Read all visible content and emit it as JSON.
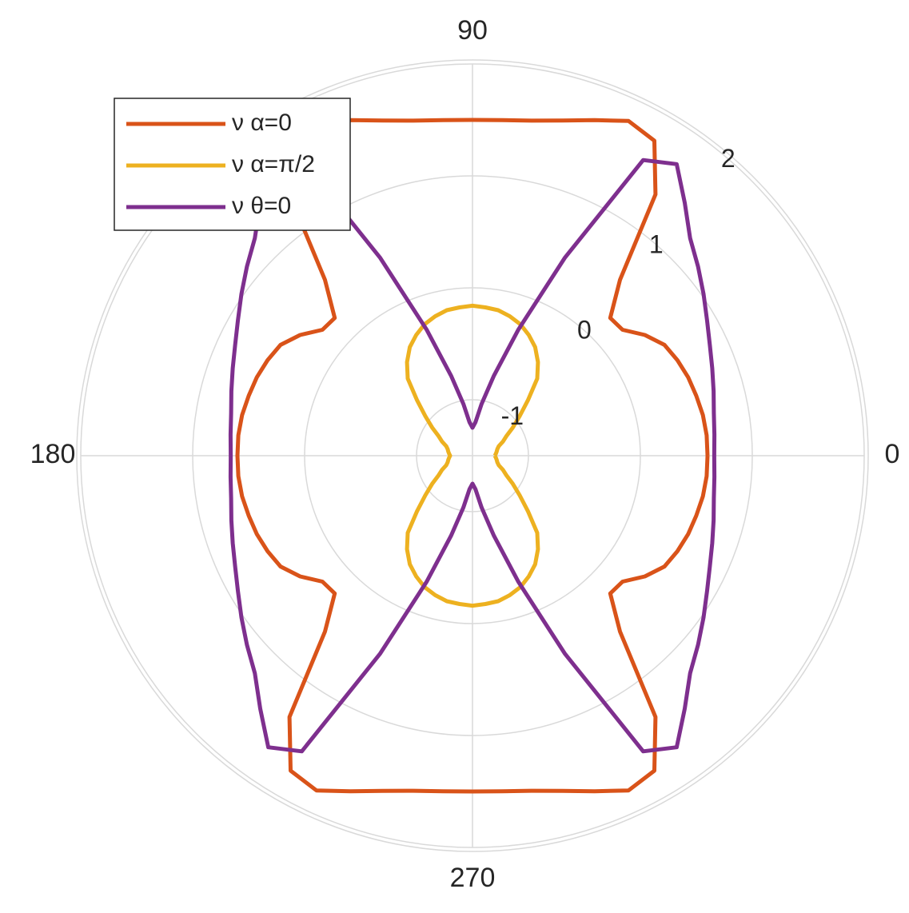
{
  "chart_data": {
    "type": "polar",
    "theta": [
      0,
      5,
      10,
      15,
      20,
      25,
      30,
      35,
      40,
      45,
      50,
      55,
      60,
      65,
      70,
      75,
      80,
      85,
      90,
      95,
      100,
      105,
      110,
      115,
      120,
      125,
      130,
      135,
      140,
      145,
      150,
      155,
      160,
      165,
      170,
      175,
      180,
      185,
      190,
      195,
      200,
      205,
      210,
      215,
      220,
      225,
      230,
      235,
      240,
      245,
      250,
      255,
      260,
      265,
      270,
      275,
      280,
      285,
      290,
      295,
      300,
      305,
      310,
      315,
      320,
      325,
      330,
      335,
      340,
      345,
      350,
      355,
      360
    ],
    "rlim": [
      -1.5,
      2
    ],
    "rticks": [
      -1,
      0,
      1,
      2
    ],
    "thetaticks": [
      0,
      90,
      180,
      270
    ],
    "grid": true,
    "legend": "upper left",
    "series": [
      {
        "name": "ν α=0",
        "color": "#d95319",
        "values": [
          0.6,
          0.6,
          0.59,
          0.57,
          0.55,
          0.52,
          0.48,
          0.38,
          0.25,
          0.24,
          0.55,
          1.35,
          1.75,
          1.8,
          1.69,
          1.6,
          1.54,
          1.51,
          1.5,
          1.51,
          1.54,
          1.6,
          1.69,
          1.8,
          1.75,
          1.35,
          0.55,
          0.24,
          0.25,
          0.38,
          0.48,
          0.52,
          0.55,
          0.57,
          0.59,
          0.6,
          0.6,
          0.6,
          0.59,
          0.57,
          0.55,
          0.52,
          0.48,
          0.38,
          0.25,
          0.24,
          0.55,
          1.35,
          1.75,
          1.8,
          1.69,
          1.6,
          1.54,
          1.51,
          1.5,
          1.51,
          1.54,
          1.6,
          1.69,
          1.8,
          1.75,
          1.35,
          0.55,
          0.24,
          0.25,
          0.38,
          0.48,
          0.52,
          0.55,
          0.57,
          0.59,
          0.6,
          0.6
        ]
      },
      {
        "name": "ν α=π/2",
        "color": "#edb120",
        "values": [
          -1.3,
          -1.29,
          -1.28,
          -1.27,
          -1.25,
          -1.2,
          -1.15,
          -1.06,
          -0.95,
          -0.8,
          -0.6,
          -0.48,
          -0.38,
          -0.31,
          -0.25,
          -0.21,
          -0.18,
          -0.17,
          -0.16,
          -0.17,
          -0.18,
          -0.21,
          -0.25,
          -0.31,
          -0.38,
          -0.48,
          -0.6,
          -0.8,
          -0.95,
          -1.06,
          -1.15,
          -1.2,
          -1.25,
          -1.27,
          -1.28,
          -1.29,
          -1.3,
          -1.29,
          -1.28,
          -1.27,
          -1.25,
          -1.2,
          -1.15,
          -1.06,
          -0.95,
          -0.8,
          -0.6,
          -0.48,
          -0.38,
          -0.31,
          -0.25,
          -0.21,
          -0.18,
          -0.17,
          -0.16,
          -0.17,
          -0.18,
          -0.21,
          -0.25,
          -0.31,
          -0.38,
          -0.48,
          -0.6,
          -0.8,
          -0.95,
          -1.06,
          -1.15,
          -1.2,
          -1.25,
          -1.27,
          -1.28,
          -1.29,
          -1.3
        ]
      },
      {
        "name": "ν θ=0",
        "color": "#7e2f8e",
        "values": [
          0.66,
          0.67,
          0.69,
          0.73,
          0.78,
          0.84,
          0.92,
          1.02,
          1.13,
          1.25,
          1.45,
          1.68,
          1.55,
          0.45,
          -0.3,
          -0.76,
          -1.03,
          -1.2,
          -1.25,
          -1.2,
          -1.03,
          -0.76,
          -0.3,
          0.45,
          1.55,
          1.68,
          1.45,
          1.25,
          1.13,
          1.02,
          0.92,
          0.84,
          0.78,
          0.73,
          0.69,
          0.67,
          0.66,
          0.67,
          0.69,
          0.73,
          0.78,
          0.84,
          0.92,
          1.02,
          1.13,
          1.25,
          1.45,
          1.68,
          1.55,
          0.45,
          -0.3,
          -0.76,
          -1.03,
          -1.2,
          -1.25,
          -1.2,
          -1.03,
          -0.76,
          -0.3,
          0.45,
          1.55,
          1.68,
          1.45,
          1.25,
          1.13,
          1.02,
          0.92,
          0.84,
          0.78,
          0.73,
          0.69,
          0.67,
          0.66
        ]
      }
    ]
  }
}
